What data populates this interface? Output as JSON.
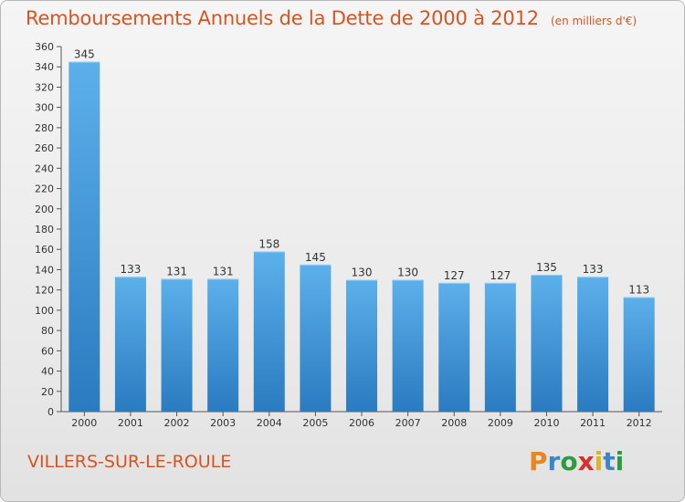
{
  "header": {
    "title": "Remboursements Annuels de la Dette de 2000 à 2012",
    "unit": "(en milliers d'€)"
  },
  "footer": {
    "place": "VILLERS-SUR-LE-ROULE",
    "brand": {
      "letters": [
        "P",
        "r",
        "o",
        "x",
        "i",
        "t",
        "i"
      ],
      "colors": [
        "#e8861f",
        "#3a86c8",
        "#2c9c3c",
        "#d8312c",
        "#e0b41e",
        "#3a86c8",
        "#2c9c3c"
      ]
    }
  },
  "colors": {
    "bar_light": "#5cb0ea",
    "bar_dark": "#2a7bc0",
    "accent": "#d45522"
  },
  "chart_data": {
    "type": "bar",
    "title": "Remboursements Annuels de la Dette de 2000 à 2012",
    "xlabel": "",
    "ylabel": "",
    "categories": [
      "2000",
      "2001",
      "2002",
      "2003",
      "2004",
      "2005",
      "2006",
      "2007",
      "2008",
      "2009",
      "2010",
      "2011",
      "2012"
    ],
    "values": [
      345,
      133,
      131,
      131,
      158,
      145,
      130,
      130,
      127,
      127,
      135,
      133,
      113
    ],
    "ylim": [
      0,
      360
    ],
    "ytick_step": 20,
    "grid": false,
    "legend": "none"
  }
}
